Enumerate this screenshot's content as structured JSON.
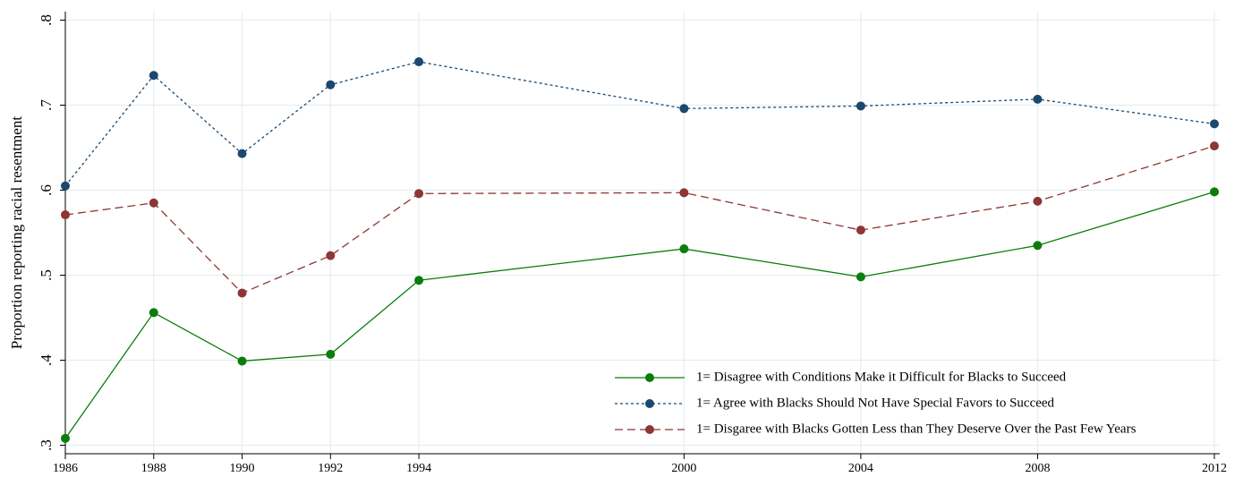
{
  "chart_data": {
    "type": "line",
    "y_label": "Proportion reporting racial resentment",
    "x": [
      1986,
      1988,
      1990,
      1992,
      1994,
      2000,
      2004,
      2008,
      2012
    ],
    "xlim": [
      1986,
      2012
    ],
    "xticks": [
      1986,
      1988,
      1990,
      1992,
      1994,
      2000,
      2004,
      2008,
      2012
    ],
    "ylim": [
      0.29,
      0.81
    ],
    "yticks": [
      {
        "value": 0.3,
        "label": ".3"
      },
      {
        "value": 0.4,
        "label": ".4"
      },
      {
        "value": 0.5,
        "label": ".5"
      },
      {
        "value": 0.6,
        "label": ".6"
      },
      {
        "value": 0.7,
        "label": ".7"
      },
      {
        "value": 0.8,
        "label": ".8"
      }
    ],
    "grid": true,
    "legend": "bottom-right",
    "series": [
      {
        "name": "1= Disagree with Conditions Make it Difficult for Blacks to Succeed",
        "color": "#0b7d0b",
        "style": "solid",
        "values": [
          0.308,
          0.456,
          0.399,
          0.407,
          0.494,
          0.531,
          0.498,
          0.535,
          0.598
        ]
      },
      {
        "name": "1= Agree with Blacks Should Not Have Special Favors to Succeed",
        "color": "#1a4870",
        "style": "dotted",
        "values": [
          0.605,
          0.735,
          0.643,
          0.724,
          0.751,
          0.696,
          0.699,
          0.707,
          0.678
        ]
      },
      {
        "name": "1= Disgaree with Blacks Gotten Less than They Deserve Over the Past Few Years",
        "color": "#8e3535",
        "style": "dashed",
        "values": [
          0.571,
          0.585,
          0.479,
          0.523,
          0.596,
          0.597,
          0.553,
          0.587,
          0.652
        ]
      }
    ]
  }
}
